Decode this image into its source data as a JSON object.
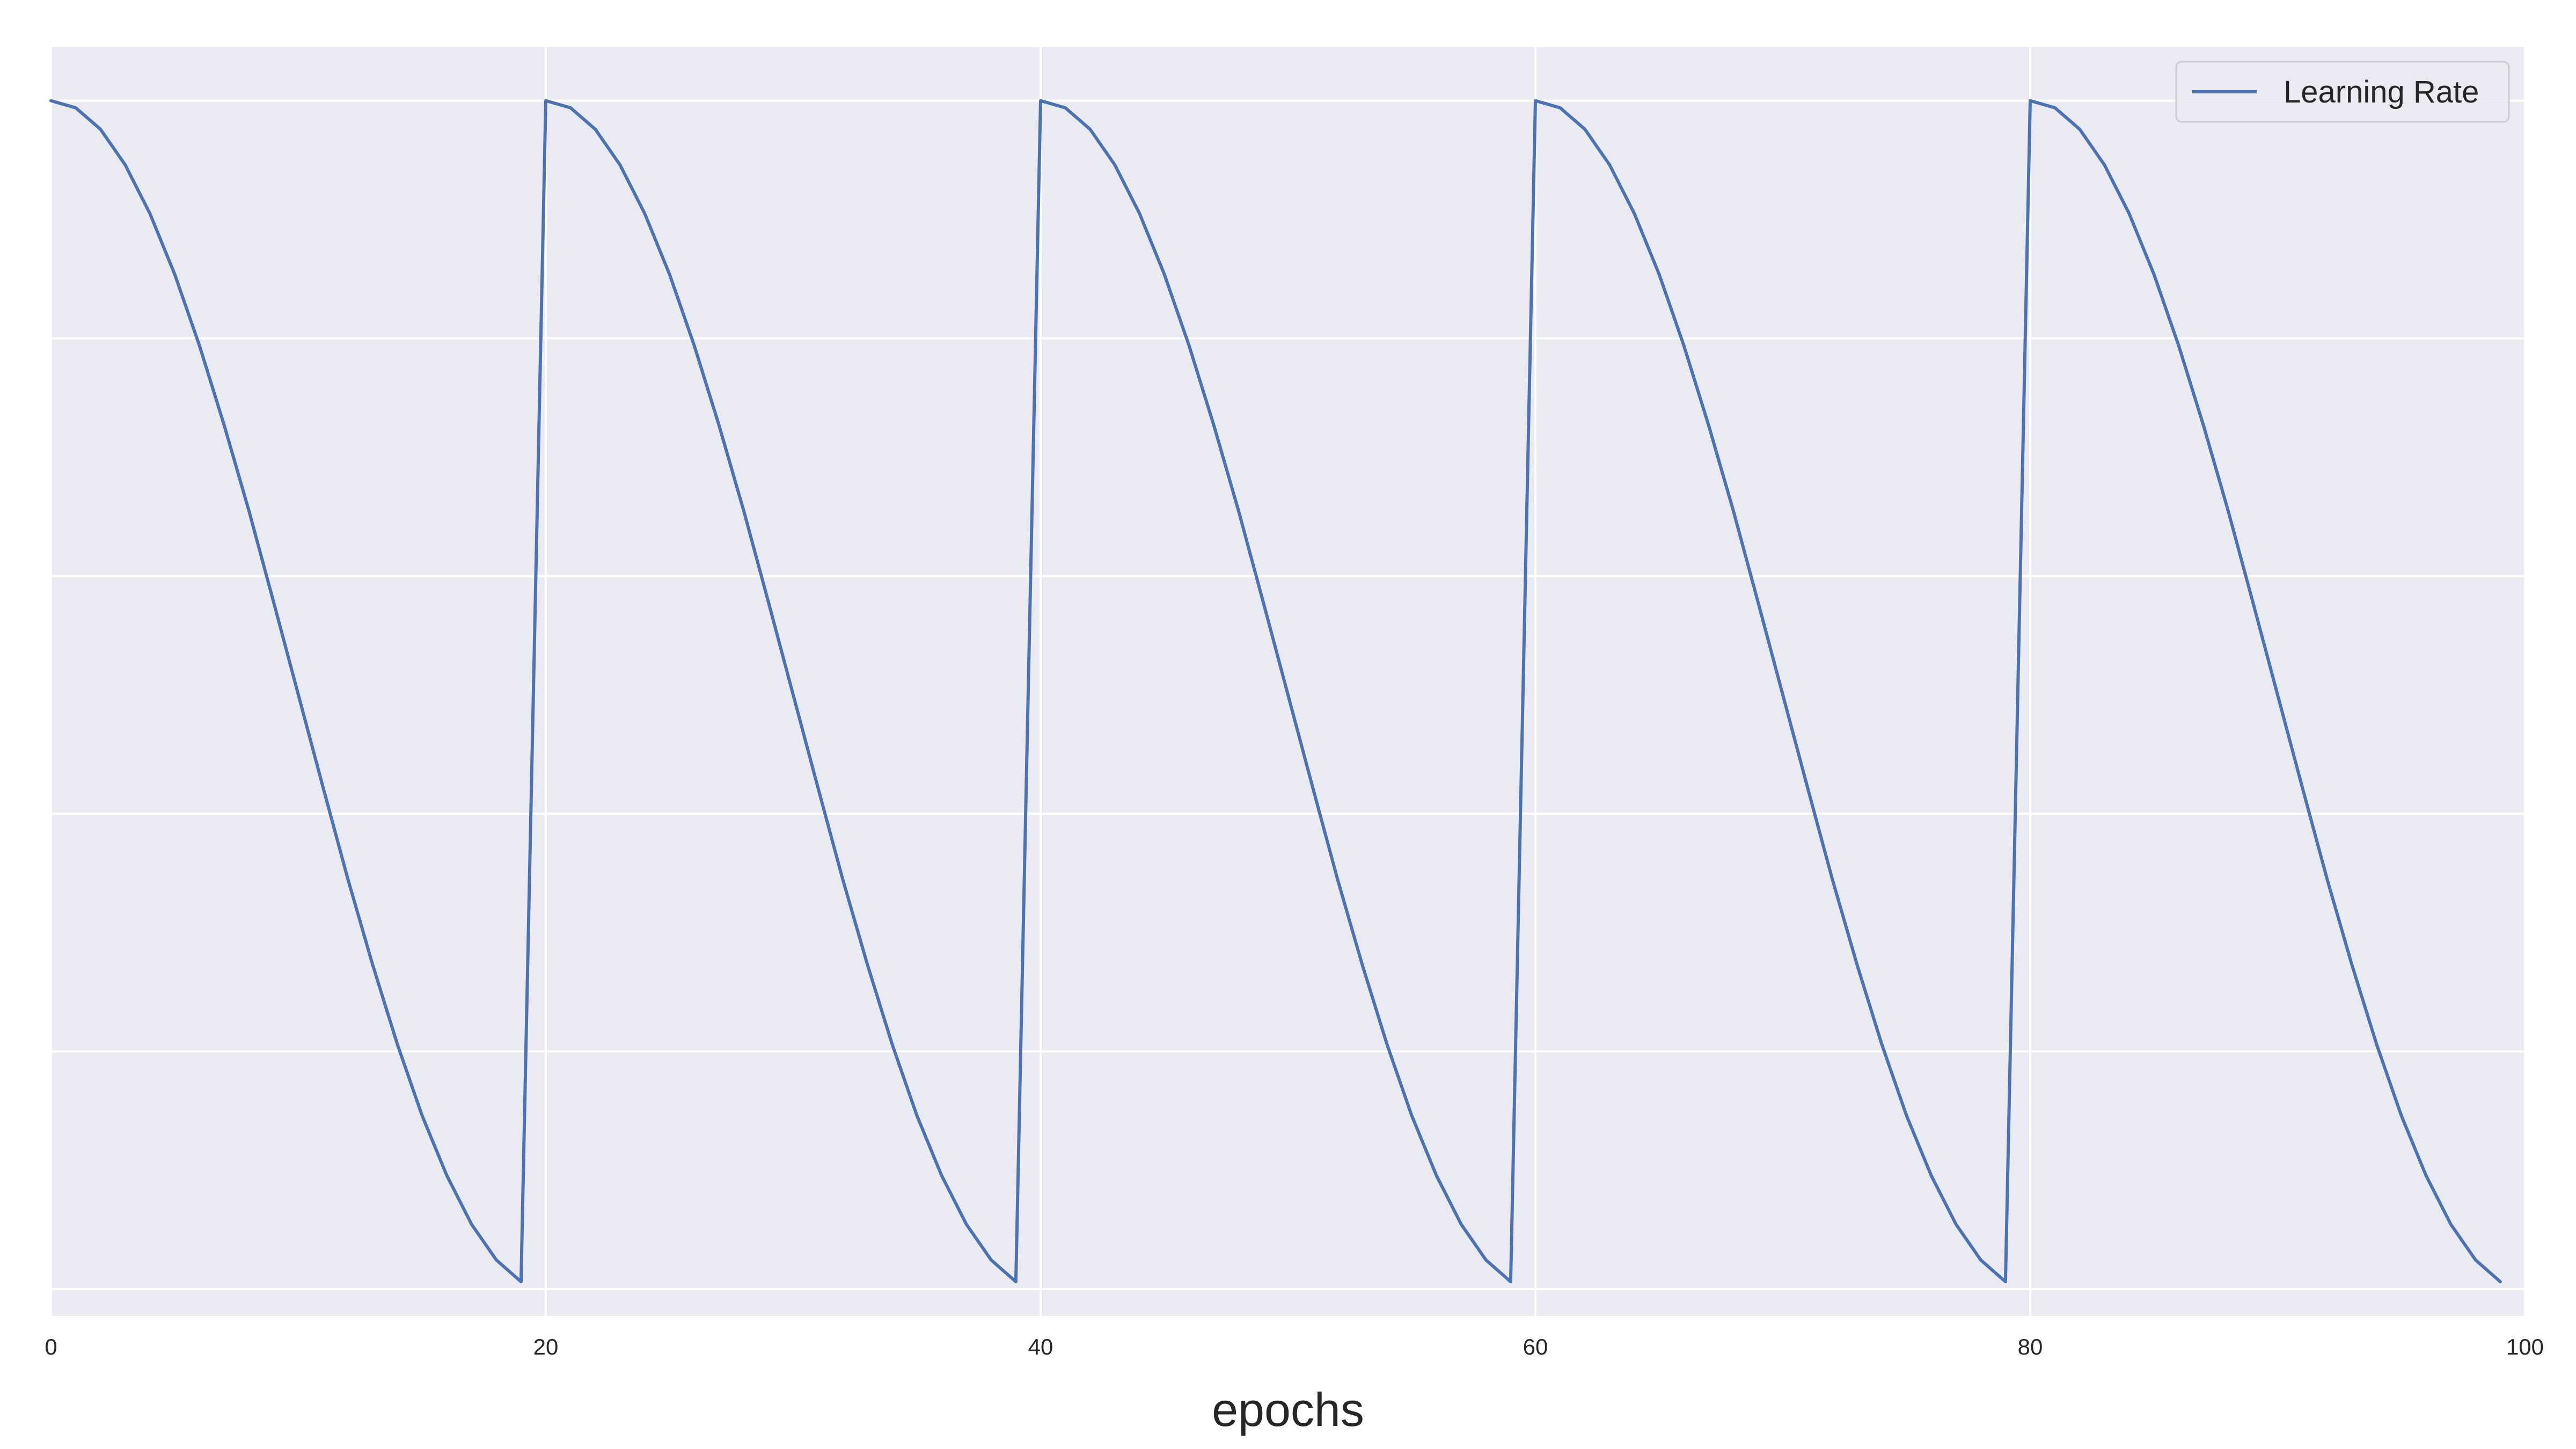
{
  "chart_data": {
    "type": "line",
    "title": "",
    "xlabel": "epochs",
    "ylabel": "",
    "xlim": [
      0,
      100
    ],
    "ylim": [
      -2.26e-05,
      0.001045
    ],
    "x_ticks": [
      0,
      20,
      40,
      60,
      80,
      100
    ],
    "x_tick_labels": [
      "0",
      "20",
      "40",
      "60",
      "80",
      "100"
    ],
    "y_gridlines": [
      0.0,
      0.0002,
      0.0004,
      0.0006,
      0.0008,
      0.001
    ],
    "y_tick_labels_visible": false,
    "grid": true,
    "background_color": "#eaeaf2",
    "grid_color": "#ffffff",
    "legend": {
      "position": "top-right",
      "entries": [
        "Learning Rate"
      ]
    },
    "series": [
      {
        "name": "Learning Rate",
        "color": "#4c72b0",
        "x": [
          0,
          1,
          2,
          3,
          4,
          5,
          6,
          7,
          8,
          9,
          10,
          11,
          12,
          13,
          14,
          15,
          16,
          17,
          18,
          19,
          20,
          21,
          22,
          23,
          24,
          25,
          26,
          27,
          28,
          29,
          30,
          31,
          32,
          33,
          34,
          35,
          36,
          37,
          38,
          39,
          40,
          41,
          42,
          43,
          44,
          45,
          46,
          47,
          48,
          49,
          50,
          51,
          52,
          53,
          54,
          55,
          56,
          57,
          58,
          59,
          60,
          61,
          62,
          63,
          64,
          65,
          66,
          67,
          68,
          69,
          70,
          71,
          72,
          73,
          74,
          75,
          76,
          77,
          78,
          79,
          80,
          81,
          82,
          83,
          84,
          85,
          86,
          87,
          88,
          89,
          90,
          91,
          92,
          93,
          94,
          95,
          96,
          97,
          98,
          99
        ],
        "y": [
          0.001,
          0.000994,
          0.000976,
          0.000946,
          0.000905,
          0.000854,
          0.000794,
          0.000727,
          0.000655,
          0.000578,
          0.0005,
          0.000422,
          0.000345,
          0.000273,
          0.000206,
          0.000146,
          9.55e-05,
          5.45e-05,
          2.45e-05,
          6.16e-06,
          0.001,
          0.000994,
          0.000976,
          0.000946,
          0.000905,
          0.000854,
          0.000794,
          0.000727,
          0.000655,
          0.000578,
          0.0005,
          0.000422,
          0.000345,
          0.000273,
          0.000206,
          0.000146,
          9.55e-05,
          5.45e-05,
          2.45e-05,
          6.16e-06,
          0.001,
          0.000994,
          0.000976,
          0.000946,
          0.000905,
          0.000854,
          0.000794,
          0.000727,
          0.000655,
          0.000578,
          0.0005,
          0.000422,
          0.000345,
          0.000273,
          0.000206,
          0.000146,
          9.55e-05,
          5.45e-05,
          2.45e-05,
          6.16e-06,
          0.001,
          0.000994,
          0.000976,
          0.000946,
          0.000905,
          0.000854,
          0.000794,
          0.000727,
          0.000655,
          0.000578,
          0.0005,
          0.000422,
          0.000345,
          0.000273,
          0.000206,
          0.000146,
          9.55e-05,
          5.45e-05,
          2.45e-05,
          6.16e-06,
          0.001,
          0.000994,
          0.000976,
          0.000946,
          0.000905,
          0.000854,
          0.000794,
          0.000727,
          0.000655,
          0.000578,
          0.0005,
          0.000422,
          0.000345,
          0.000273,
          0.000206,
          0.000146,
          9.55e-05,
          5.45e-05,
          2.45e-05,
          6.16e-06
        ]
      }
    ]
  }
}
